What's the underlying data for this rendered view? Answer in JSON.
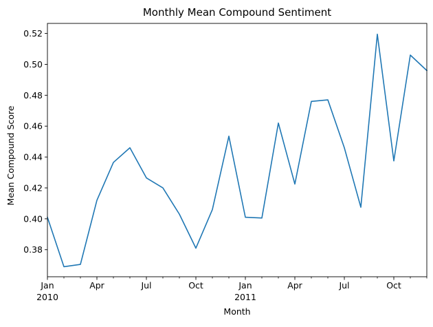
{
  "chart_data": {
    "type": "line",
    "title": "Monthly Mean Compound Sentiment",
    "xlabel": "Month",
    "ylabel": "Mean Compound Score",
    "x": [
      "2010-01",
      "2010-02",
      "2010-03",
      "2010-04",
      "2010-05",
      "2010-06",
      "2010-07",
      "2010-08",
      "2010-09",
      "2010-10",
      "2010-11",
      "2010-12",
      "2011-01",
      "2011-02",
      "2011-03",
      "2011-04",
      "2011-05",
      "2011-06",
      "2011-07",
      "2011-08",
      "2011-09",
      "2011-10",
      "2011-11",
      "2011-12"
    ],
    "series": [
      {
        "values": [
          0.401,
          0.369,
          0.3705,
          0.412,
          0.4365,
          0.446,
          0.4265,
          0.42,
          0.403,
          0.381,
          0.406,
          0.4535,
          0.401,
          0.4005,
          0.462,
          0.4225,
          0.476,
          0.477,
          0.446,
          0.4075,
          0.5195,
          0.4375,
          0.506,
          0.496
        ],
        "color": "#1f77b4"
      }
    ],
    "xlim": [
      "2010-01",
      "2011-12"
    ],
    "ylim": [
      0.3625,
      0.5265
    ],
    "y_ticks": [
      0.38,
      0.4,
      0.42,
      0.44,
      0.46,
      0.48,
      0.5,
      0.52
    ],
    "y_tick_labels": [
      "0.38",
      "0.40",
      "0.42",
      "0.44",
      "0.46",
      "0.48",
      "0.50",
      "0.52"
    ],
    "x_major_ticks": [
      {
        "month": "2010-01",
        "label": "Jan",
        "sublabel": "2010"
      },
      {
        "month": "2010-04",
        "label": "Apr",
        "sublabel": ""
      },
      {
        "month": "2010-07",
        "label": "Jul",
        "sublabel": ""
      },
      {
        "month": "2010-10",
        "label": "Oct",
        "sublabel": ""
      },
      {
        "month": "2011-01",
        "label": "Jan",
        "sublabel": "2011"
      },
      {
        "month": "2011-04",
        "label": "Apr",
        "sublabel": ""
      },
      {
        "month": "2011-07",
        "label": "Jul",
        "sublabel": ""
      },
      {
        "month": "2011-10",
        "label": "Oct",
        "sublabel": ""
      }
    ],
    "grid": false,
    "legend": "none"
  }
}
